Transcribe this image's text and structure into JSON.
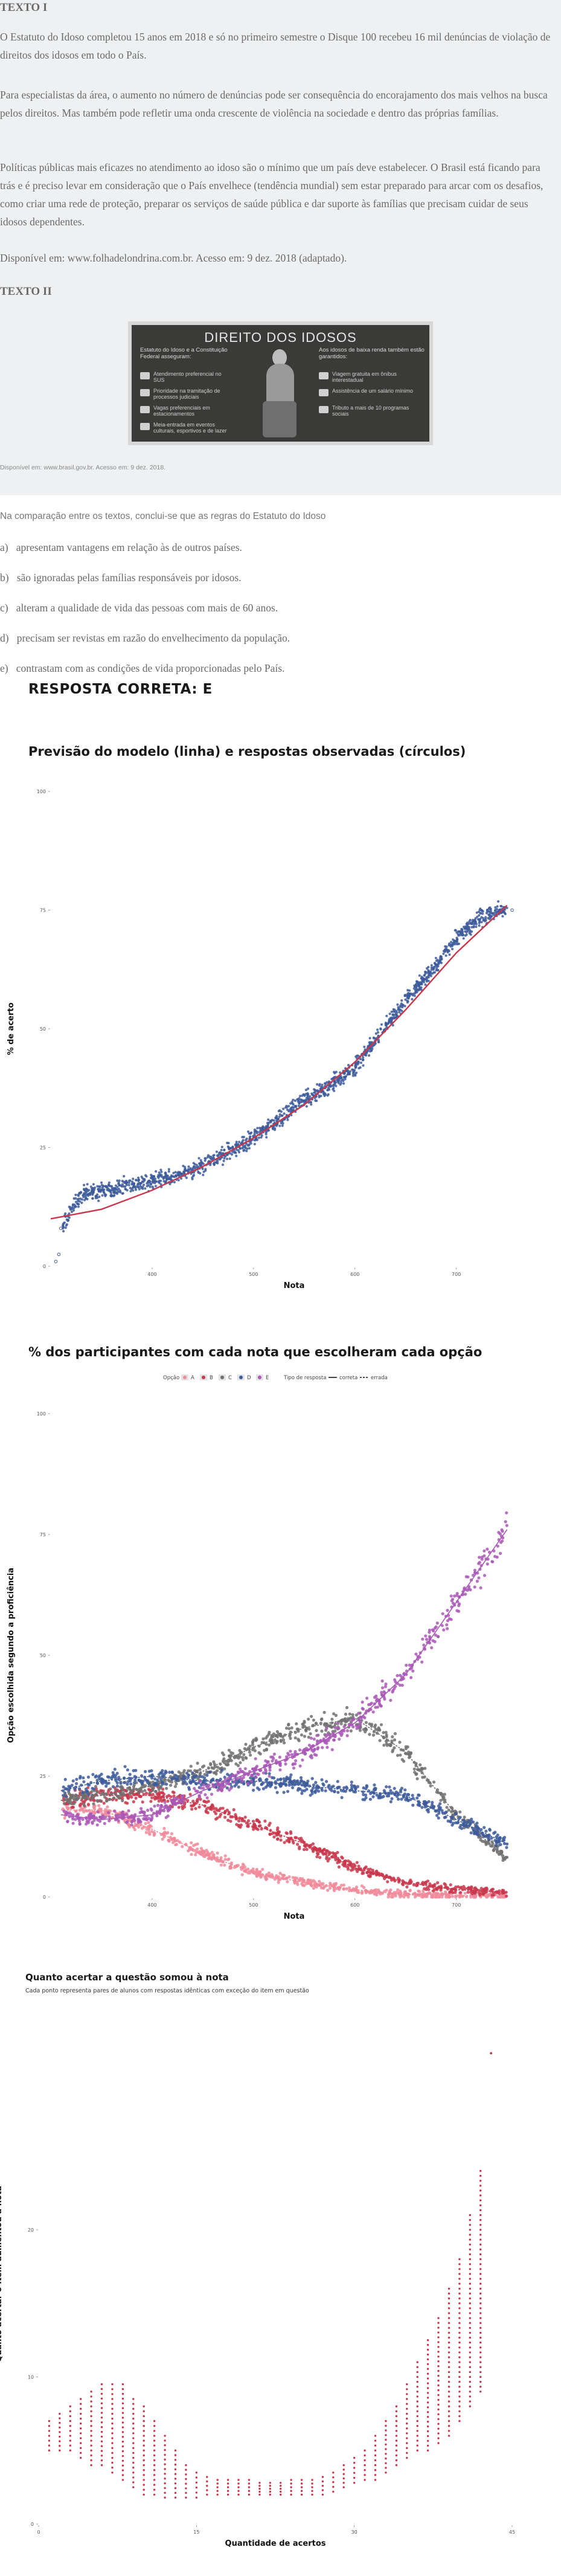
{
  "question": {
    "texto1_label": "TEXTO I",
    "paragraphs": [
      "O Estatuto do Idoso completou 15 anos em 2018 e só no primeiro semestre o Disque 100 recebeu 16 mil denúncias de violação de direitos dos idosos em todo o País.",
      "Para especialistas da área, o aumento no número de denúncias pode ser consequência do encorajamento dos mais velhos na busca pelos direitos. Mas também pode refletir uma onda crescente de violência na sociedade e dentro das próprias famílias.",
      "Políticas públicas mais eficazes no atendimento ao idoso são o mínimo que um país deve estabelecer. O Brasil está ficando para trás e é preciso levar em consideração que o País envelhece (tendência mundial) sem estar preparado para arcar com os desafios, como criar uma rede de proteção, preparar os serviços de saúde pública e dar suporte às famílias que precisam cuidar de seus idosos dependentes.",
      "Disponível em: www.folhadelondrina.com.br. Acesso em: 9 dez. 2018 (adaptado)."
    ],
    "texto2_label": "TEXTO II",
    "poster": {
      "title": "DIREITO DOS IDOSOS",
      "left_sub": "Estatuto do Idoso e a Constituição Federal asseguram:",
      "right_sub": "Aos idosos de baixa renda também estão garantidos:",
      "left_items": [
        "Atendimento preferencial no SUS",
        "Prioridade na tramitação de processos judiciais",
        "Vagas preferenciais em estacionamentos",
        "Meia-entrada em eventos culturais, esportivos e de lazer"
      ],
      "right_items": [
        "Viagem gratuita em ônibus interestadual",
        "Assistência de um salário mínimo",
        "Tributo a mais de 10 programas sociais"
      ]
    },
    "poster_source": "Disponível em: www.brasil.gov.br. Acesso em: 9 dez. 2018.",
    "stem": "Na comparação entre os textos, conclui-se que as regras do Estatuto do Idoso",
    "options": [
      {
        "letter": "a)",
        "text": "apresentam vantagens em relação às de outros países."
      },
      {
        "letter": "b)",
        "text": "são ignoradas pelas famílias responsáveis por idosos."
      },
      {
        "letter": "c)",
        "text": "alteram a qualidade de vida das pessoas com mais de 60 anos."
      },
      {
        "letter": "d)",
        "text": "precisam ser revistas em razão do envelhecimento da população."
      },
      {
        "letter": "e)",
        "text": "contrastam com as condições de vida proporcionadas pelo País."
      }
    ],
    "answer": "RESPOSTA CORRETA: E"
  },
  "colors": {
    "navy": "#3d5a9b",
    "red": "#c8374b",
    "pink": "#f08a9a",
    "gray": "#707070",
    "purple": "#a958b6",
    "line": "#c8374b"
  },
  "chart_data": [
    {
      "type": "scatter",
      "title": "Previsão do modelo (linha) e respostas observadas (círculos)",
      "xlabel": "Nota",
      "ylabel": "% de acerto",
      "xlim": [
        300,
        780
      ],
      "ylim": [
        0,
        100
      ],
      "x_ticks": [
        400,
        500,
        600,
        700
      ],
      "y_ticks": [
        0,
        25,
        50,
        75,
        100
      ],
      "model_line": {
        "x": [
          300,
          350,
          400,
          450,
          500,
          550,
          600,
          650,
          700,
          750
        ],
        "y": [
          10,
          12,
          16,
          21,
          27,
          34,
          43,
          54,
          66,
          76
        ]
      },
      "observed": {
        "x": [
          305,
          310,
          330,
          350,
          375,
          400,
          425,
          450,
          475,
          500,
          525,
          550,
          575,
          600,
          625,
          650,
          675,
          700,
          720,
          740,
          755
        ],
        "y": [
          1,
          8,
          15,
          16,
          17,
          18,
          19,
          21,
          24,
          27,
          31,
          35,
          38,
          42,
          49,
          56,
          62,
          69,
          73,
          75,
          75
        ]
      }
    },
    {
      "type": "scatter",
      "title": "% dos participantes com cada nota que escolheram cada opção",
      "xlabel": "Nota",
      "ylabel": "Opção escolhida segundo a proficiência",
      "xlim": [
        300,
        780
      ],
      "ylim": [
        0,
        100
      ],
      "x_ticks": [
        400,
        500,
        600,
        700
      ],
      "y_ticks": [
        0,
        25,
        50,
        75,
        100
      ],
      "legend": {
        "option_title": "Opção",
        "options": [
          "A",
          "B",
          "C",
          "D",
          "E"
        ],
        "type_title": "Tipo de resposta",
        "types": [
          "correta",
          "errada"
        ]
      },
      "x": [
        310,
        350,
        400,
        450,
        500,
        550,
        600,
        650,
        700,
        750
      ],
      "series": [
        {
          "name": "A",
          "values": [
            18,
            18,
            14,
            9,
            5,
            3,
            1.5,
            0.5,
            0.3,
            0.2
          ]
        },
        {
          "name": "B",
          "values": [
            20,
            21,
            21,
            19,
            15,
            11,
            6,
            3,
            1.5,
            1
          ]
        },
        {
          "name": "C",
          "values": [
            20,
            21,
            23,
            26,
            31,
            35,
            37,
            30,
            17,
            8
          ]
        },
        {
          "name": "D",
          "values": [
            22,
            24,
            25,
            24,
            24,
            23,
            22,
            21,
            16,
            11
          ]
        },
        {
          "name": "E",
          "values": [
            17,
            16,
            17,
            22,
            26,
            30,
            36,
            46,
            61,
            76
          ]
        }
      ]
    },
    {
      "type": "scatter",
      "title": "Quanto acertar a questão somou à nota",
      "subtitle": "Cada ponto representa pares de alunos com respostas idênticas com exceção do item em questão",
      "xlabel": "Quantidade de acertos",
      "ylabel": "Quanto acertar o item aumentou a nota",
      "xlim": [
        0,
        45
      ],
      "ylim": [
        0,
        34
      ],
      "x_ticks": [
        0,
        15,
        30,
        45
      ],
      "y_ticks": [
        0,
        10,
        20
      ],
      "ranges": [
        {
          "x": 1,
          "y": [
            5,
            7
          ]
        },
        {
          "x": 2,
          "y": [
            5,
            7.5
          ]
        },
        {
          "x": 3,
          "y": [
            5,
            8
          ]
        },
        {
          "x": 4,
          "y": [
            4.5,
            8.5
          ]
        },
        {
          "x": 5,
          "y": [
            4,
            9
          ]
        },
        {
          "x": 6,
          "y": [
            4,
            9.5
          ]
        },
        {
          "x": 7,
          "y": [
            3.5,
            9.5
          ]
        },
        {
          "x": 8,
          "y": [
            3,
            9.5
          ]
        },
        {
          "x": 9,
          "y": [
            2.5,
            8.5
          ]
        },
        {
          "x": 10,
          "y": [
            2,
            8
          ]
        },
        {
          "x": 11,
          "y": [
            2,
            7
          ]
        },
        {
          "x": 12,
          "y": [
            1.8,
            6
          ]
        },
        {
          "x": 13,
          "y": [
            1.8,
            5
          ]
        },
        {
          "x": 14,
          "y": [
            1.8,
            4
          ]
        },
        {
          "x": 15,
          "y": [
            1.8,
            3.5
          ]
        },
        {
          "x": 16,
          "y": [
            2,
            3.2
          ]
        },
        {
          "x": 17,
          "y": [
            2,
            3
          ]
        },
        {
          "x": 18,
          "y": [
            2,
            3
          ]
        },
        {
          "x": 19,
          "y": [
            2,
            3
          ]
        },
        {
          "x": 20,
          "y": [
            2,
            3
          ]
        },
        {
          "x": 21,
          "y": [
            2,
            2.8
          ]
        },
        {
          "x": 22,
          "y": [
            2,
            2.8
          ]
        },
        {
          "x": 23,
          "y": [
            2,
            2.8
          ]
        },
        {
          "x": 24,
          "y": [
            2,
            3
          ]
        },
        {
          "x": 25,
          "y": [
            2,
            3
          ]
        },
        {
          "x": 26,
          "y": [
            2,
            3
          ]
        },
        {
          "x": 27,
          "y": [
            2,
            3.2
          ]
        },
        {
          "x": 28,
          "y": [
            2.2,
            3.5
          ]
        },
        {
          "x": 29,
          "y": [
            2.5,
            4
          ]
        },
        {
          "x": 30,
          "y": [
            2.8,
            4.5
          ]
        },
        {
          "x": 31,
          "y": [
            3,
            5
          ]
        },
        {
          "x": 32,
          "y": [
            3,
            6
          ]
        },
        {
          "x": 33,
          "y": [
            3.5,
            7
          ]
        },
        {
          "x": 34,
          "y": [
            4,
            8
          ]
        },
        {
          "x": 35,
          "y": [
            4.5,
            9.5
          ]
        },
        {
          "x": 36,
          "y": [
            5,
            11
          ]
        },
        {
          "x": 37,
          "y": [
            5,
            12.5
          ]
        },
        {
          "x": 38,
          "y": [
            5.5,
            14
          ]
        },
        {
          "x": 39,
          "y": [
            6,
            16
          ]
        },
        {
          "x": 40,
          "y": [
            7,
            18
          ]
        },
        {
          "x": 41,
          "y": [
            8,
            21
          ]
        },
        {
          "x": 42,
          "y": [
            9,
            24
          ]
        }
      ],
      "outlier": {
        "x": 43,
        "y": 32
      }
    }
  ]
}
